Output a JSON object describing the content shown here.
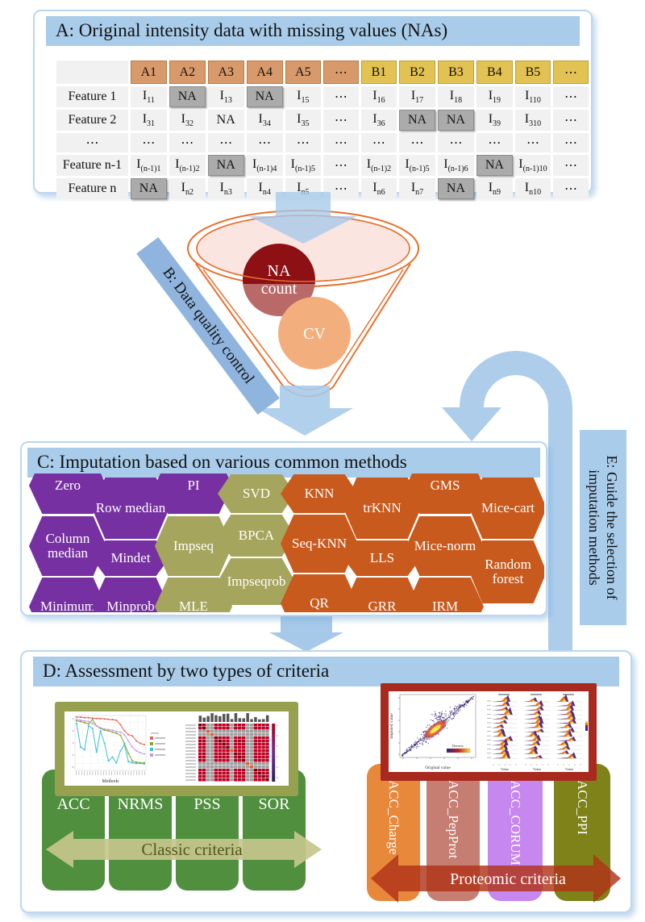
{
  "colors": {
    "header_blue": "#A9CCEA",
    "arrow_blue": "#A6C9E9",
    "panel_border": "#BDD7EE",
    "purple": "#7630A2",
    "olive": "#A6A55E",
    "orange": "#C95A1D",
    "na_red": "#8C1014",
    "cv_peach": "#F3AE7D",
    "funnel_line": "#E8702E",
    "funnel_pink": "#FBE5E0",
    "green_box": "#4F8F3E",
    "classic_arrow": "#C6C78B",
    "classic_text": "#55561D",
    "proteomic_arrow": "#B03318",
    "box_orange": "#E8883B",
    "box_rose": "#C67D72",
    "box_violet": "#C687EE",
    "box_olive": "#7E8218",
    "frame_olive": "#96A04E",
    "frame_red": "#A8291E",
    "na_gray": "#ABABAB",
    "col_a": "#D89A6A",
    "col_b": "#E2C252"
  },
  "panelA": {
    "title": "A: Original intensity data with missing values (NAs)",
    "table": {
      "col_headers": [
        "",
        "A1",
        "A2",
        "A3",
        "A4",
        "A5",
        "...",
        "B1",
        "B2",
        "B3",
        "B4",
        "B5",
        "..."
      ],
      "rows": [
        {
          "label": "Feature 1",
          "cells": [
            "I_11",
            "NA!",
            "I_13",
            "NA!",
            "I_15",
            "...",
            "I_16",
            "I_17",
            "I_18",
            "I_19",
            "I_110",
            "..."
          ]
        },
        {
          "label": "Feature 2",
          "cells": [
            "I_31",
            "I_32",
            "NA",
            "I_34",
            "I_35",
            "...",
            "I_36",
            "NA!",
            "NA!",
            "I_39",
            "I_310",
            "..."
          ]
        },
        {
          "label": "...",
          "cells": [
            "...",
            "...",
            "...",
            "...",
            "...",
            "...",
            "...",
            "...",
            "...",
            "...",
            "...",
            "..."
          ]
        },
        {
          "label": "Feature n-1",
          "cells": [
            "I_(n-1)1",
            "I_(n-1)2",
            "NA!",
            "I_(n-1)4",
            "I_(n-1)5",
            "...",
            "I_(n-1)2",
            "I_(n-1)5",
            "I_(n-1)6",
            "NA!",
            "I_(n-1)10",
            "..."
          ]
        },
        {
          "label": "Feature n",
          "cells": [
            "NA!",
            "I_n2",
            "I_n3",
            "I_n4",
            "I_n5",
            "...",
            "I_n6",
            "I_n7",
            "NA!",
            "I_n9",
            "I_n10",
            "..."
          ]
        }
      ]
    }
  },
  "panelB": {
    "label": "B: Data quality control",
    "na_circle_line1": "NA",
    "na_circle_line2": "count",
    "cv_circle": "CV"
  },
  "panelC": {
    "title": "C: Imputation based on various common methods",
    "hexes": [
      {
        "label": "Zero",
        "color": "purple"
      },
      {
        "label": "Column median",
        "color": "purple"
      },
      {
        "label": "Minimum",
        "color": "purple"
      },
      {
        "label": "Row median",
        "color": "purple"
      },
      {
        "label": "Mindet",
        "color": "purple"
      },
      {
        "label": "Minprob",
        "color": "purple"
      },
      {
        "label": "PI",
        "color": "purple"
      },
      {
        "label": "Impseq",
        "color": "olive"
      },
      {
        "label": "MLE",
        "color": "olive"
      },
      {
        "label": "SVD",
        "color": "olive"
      },
      {
        "label": "BPCA",
        "color": "olive"
      },
      {
        "label": "Impseqrob",
        "color": "olive"
      },
      {
        "label": "KNN",
        "color": "orange"
      },
      {
        "label": "Seq-KNN",
        "color": "orange"
      },
      {
        "label": "QR",
        "color": "orange"
      },
      {
        "label": "trKNN",
        "color": "orange"
      },
      {
        "label": "LLS",
        "color": "orange"
      },
      {
        "label": "GRR",
        "color": "orange"
      },
      {
        "label": "GMS",
        "color": "orange"
      },
      {
        "label": "Mice-norm",
        "color": "orange"
      },
      {
        "label": "IRM",
        "color": "orange"
      },
      {
        "label": "Mice-cart",
        "color": "orange"
      },
      {
        "label": "Random forest",
        "color": "orange"
      }
    ]
  },
  "panelD": {
    "title": "D: Assessment by two types of criteria",
    "classic": {
      "boxes": [
        "ACC",
        "NRMS",
        "PSS",
        "SOR"
      ],
      "arrow_label": "Classic criteria"
    },
    "proteomic": {
      "boxes": [
        "ACC_Charge",
        "ACC_PepProt",
        "ACC_CORUM",
        "ACC_PPI"
      ],
      "arrow_label": "Proteomic criteria"
    }
  },
  "panelE": {
    "line1": "E: Guide the selection of",
    "line2": "imputation methods"
  },
  "chart_data": [
    {
      "type": "line",
      "title": "",
      "xlabel": "Methods",
      "ylabel": "",
      "legend_position": "right",
      "grid": true,
      "series": [
        {
          "name": "",
          "color": "#E8635A",
          "values": [
            1,
            1,
            0.99,
            0.99,
            0.985,
            0.98,
            0.975,
            0.97,
            0.965,
            0.96,
            0.95,
            0.88,
            0.78,
            0.72,
            0.7,
            0.62,
            0.58,
            0.56
          ]
        },
        {
          "name": "",
          "color": "#8AA32E",
          "values": [
            0.94,
            0.93,
            0.91,
            0.89,
            0.96,
            0.86,
            0.82,
            0.79,
            0.78,
            0.76,
            0.74,
            0.71,
            0.58,
            0.42,
            0.3,
            0.28,
            0.27,
            0.27
          ]
        },
        {
          "name": "",
          "color": "#35C4D0",
          "values": [
            0.9,
            0.52,
            0.48,
            0.86,
            0.82,
            0.44,
            0.78,
            0.58,
            0.3,
            0.36,
            0.27,
            0.46,
            0.56,
            0.29,
            0.27,
            0.26,
            0.26,
            0.25
          ]
        },
        {
          "name": "",
          "color": "#C49BE0",
          "values": [
            0.96,
            0.95,
            0.94,
            0.93,
            0.9,
            0.86,
            0.83,
            0.81,
            0.8,
            0.79,
            0.77,
            0.76,
            0.72,
            0.62,
            0.52,
            0.46,
            0.43,
            0.41
          ]
        }
      ],
      "ylim": [
        0.2,
        1.0
      ]
    },
    {
      "type": "heatmap",
      "size": 18,
      "base_color": "#C00022",
      "diag_color": "#7A0012",
      "gray_color": "#9E9E9E",
      "gray_rows": [
        2,
        3,
        12,
        13
      ],
      "gray_cols": [
        2,
        3,
        8,
        12,
        13
      ],
      "colorbar": [
        "#B00020",
        "#703090",
        "#252060"
      ]
    },
    {
      "type": "scatter",
      "xlabel": "Original value",
      "ylabel": "Imputed value",
      "legend": "Density",
      "density_colors": [
        "#202080",
        "#C02020",
        "#FFD830"
      ]
    },
    {
      "type": "ridgeline",
      "panels": 3,
      "rows": 14,
      "xlabel": "Value"
    }
  ]
}
